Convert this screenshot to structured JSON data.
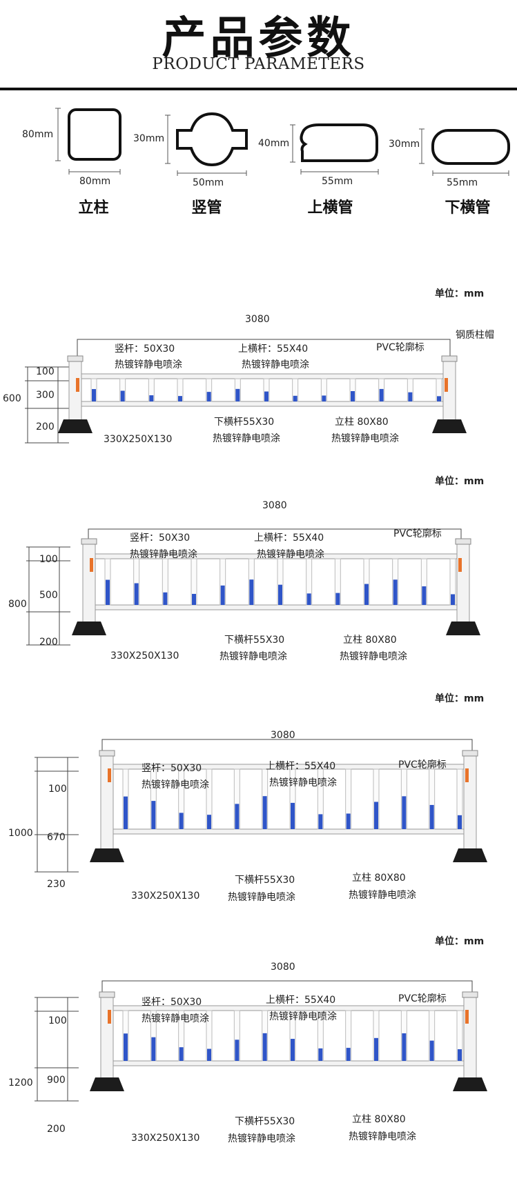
{
  "header": {
    "title_cn": "产品参数",
    "title_en": "PRODUCT PARAMETERS"
  },
  "profiles": [
    {
      "name": "立柱",
      "height": "80mm",
      "width": "80mm",
      "shape": "square-rounded"
    },
    {
      "name": "竖管",
      "height": "30mm",
      "width": "50mm",
      "shape": "round-waist"
    },
    {
      "name": "上横管",
      "height": "40mm",
      "width": "55mm",
      "shape": "rail-cap"
    },
    {
      "name": "下横管",
      "height": "30mm",
      "width": "55mm",
      "shape": "stadium"
    }
  ],
  "fences": [
    {
      "unit": "单位：mm",
      "total_length": "3080",
      "total_height": "600",
      "dims": [
        "100",
        "300",
        "200"
      ],
      "vertical_bar": "竖杆：50X30",
      "vertical_bar_coat": "热镀锌静电喷涂",
      "top_rail": "上横杆：55X40",
      "top_rail_coat": "热镀锌静电喷涂",
      "pvc": "PVC轮廓标",
      "cap": "钢质柱帽",
      "bottom_rail": "下横杆55X30",
      "bottom_rail_coat": "热镀锌静电喷涂",
      "post": "立柱 80X80",
      "post_coat": "热镀锌静电喷涂",
      "base": "330X250X130"
    },
    {
      "unit": "单位：mm",
      "total_length": "3080",
      "total_height": "800",
      "dims": [
        "100",
        "500",
        "200"
      ],
      "vertical_bar": "竖杆：50X30",
      "vertical_bar_coat": "热镀锌静电喷涂",
      "top_rail": "上横杆：55X40",
      "top_rail_coat": "热镀锌静电喷涂",
      "pvc": "PVC轮廓标",
      "bottom_rail": "下横杆55X30",
      "bottom_rail_coat": "热镀锌静电喷涂",
      "post": "立柱 80X80",
      "post_coat": "热镀锌静电喷涂",
      "base": "330X250X130"
    },
    {
      "unit": "单位：mm",
      "total_length": "3080",
      "total_height": "1000",
      "dims": [
        "100",
        "670",
        "230"
      ],
      "vertical_bar": "竖杆：50X30",
      "vertical_bar_coat": "热镀锌静电喷涂",
      "top_rail": "上横杆：55X40",
      "top_rail_coat": "热镀锌静电喷涂",
      "pvc": "PVC轮廓标",
      "bottom_rail": "下横杆55X30",
      "bottom_rail_coat": "热镀锌静电喷涂",
      "post": "立柱 80X80",
      "post_coat": "热镀锌静电喷涂",
      "base": "330X250X130"
    },
    {
      "unit": "单位：mm",
      "total_length": "3080",
      "total_height": "1200",
      "dims": [
        "100",
        "900",
        "200"
      ],
      "vertical_bar": "竖杆：50X30",
      "vertical_bar_coat": "热镀锌静电喷涂",
      "top_rail": "上横杆：55X40",
      "top_rail_coat": "热镀锌静电喷涂",
      "pvc": "PVC轮廓标",
      "bottom_rail": "下横杆55X30",
      "bottom_rail_coat": "热镀锌静电喷涂",
      "post": "立柱 80X80",
      "post_coat": "热镀锌静电喷涂",
      "base": "330X250X130"
    }
  ],
  "colors": {
    "post": "#f3f3f3",
    "bar_blue": "#2f55c8",
    "base": "#1c1c1c",
    "pvc": "#e8732a"
  }
}
